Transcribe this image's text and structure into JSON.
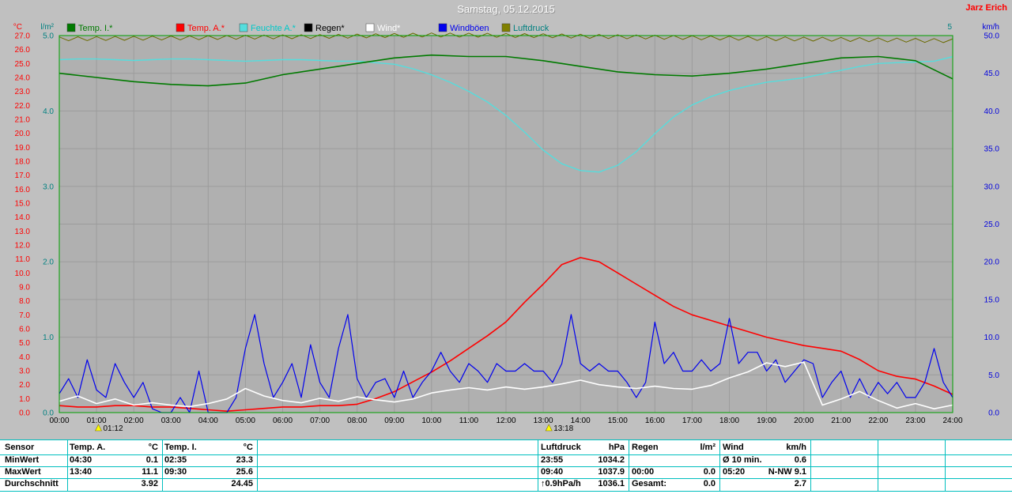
{
  "header": {
    "title": "Samstag, 05.12.2015",
    "station": "Jarz Erich"
  },
  "colors": {
    "window_bg": "#c0c0c0",
    "plot_bg": "#b0b0b0",
    "grid": "#9c9c9c",
    "border": "#00a000",
    "table_line": "#00bfbf",
    "title_color": "#ffffff",
    "station_color": "#ff0000"
  },
  "axes": {
    "left_temp": {
      "unit": "°C",
      "color": "#ff0000",
      "ticks": [
        "27.0",
        "26.0",
        "25.0",
        "24.0",
        "23.0",
        "22.0",
        "21.0",
        "20.0",
        "19.0",
        "18.0",
        "17.0",
        "16.0",
        "15.0",
        "14.0",
        "13.0",
        "12.0",
        "11.0",
        "10.0",
        "9.0",
        "8.0",
        "7.0",
        "6.0",
        "5.0",
        "4.0",
        "3.0",
        "2.0",
        "1.0",
        "0.0"
      ]
    },
    "left_rain": {
      "unit": "l/m²",
      "color": "#008080",
      "ticks": [
        "5.0",
        "4.0",
        "3.0",
        "2.0",
        "1.0",
        "0.0"
      ]
    },
    "right_scale_label": "5",
    "right_wind": {
      "unit": "km/h",
      "color": "#0000dd",
      "ticks": [
        "50.0",
        "45.0",
        "40.0",
        "35.0",
        "30.0",
        "25.0",
        "20.0",
        "15.0",
        "10.0",
        "5.0",
        "0.0"
      ]
    },
    "x_ticks": [
      "00:00",
      "01:00",
      "02:00",
      "03:00",
      "04:00",
      "05:00",
      "06:00",
      "07:00",
      "08:00",
      "09:00",
      "10:00",
      "11:00",
      "12:00",
      "13:00",
      "14:00",
      "15:00",
      "16:00",
      "17:00",
      "18:00",
      "19:00",
      "20:00",
      "21:00",
      "22:00",
      "23:00",
      "24:00"
    ]
  },
  "legend": [
    {
      "label": "Temp. I.*",
      "swatch": "#007a00",
      "text_color": "#007a00"
    },
    {
      "label": "Temp. A.*",
      "swatch": "#ff0000",
      "text_color": "#ff0000"
    },
    {
      "label": "Feuchte A.*",
      "swatch": "#55dddd",
      "text_color": "#00c8c8"
    },
    {
      "label": "Regen*",
      "swatch": "#000000",
      "text_color": "#000000"
    },
    {
      "label": "Wind*",
      "swatch": "#ffffff",
      "text_color": "#ffffff"
    },
    {
      "label": "Windböen",
      "swatch": "#0000ee",
      "text_color": "#0000ee"
    },
    {
      "label": "Luftdruck",
      "swatch": "#808000",
      "text_color": "#008080"
    }
  ],
  "markers": [
    {
      "label": "01:12",
      "hour": 1.2
    },
    {
      "label": "13:18",
      "hour": 13.3
    }
  ],
  "chart_data": {
    "type": "line",
    "title": "Samstag, 05.12.2015",
    "x_unit": "hour_of_day",
    "x_range": [
      0,
      24
    ],
    "axes_ranges": {
      "temp": [
        0,
        27
      ],
      "rain": [
        0,
        5
      ],
      "kmh": [
        0,
        50
      ],
      "hum": [
        50,
        100
      ]
    },
    "series": [
      {
        "name": "Temp. I.",
        "unit": "°C",
        "color": "#007a00",
        "axis": "temp",
        "interval_h": 1,
        "values": [
          24.3,
          24.0,
          23.7,
          23.5,
          23.4,
          23.6,
          24.2,
          24.6,
          25.0,
          25.4,
          25.6,
          25.5,
          25.5,
          25.2,
          24.8,
          24.4,
          24.2,
          24.1,
          24.3,
          24.6,
          25.0,
          25.4,
          25.5,
          25.2,
          23.9
        ]
      },
      {
        "name": "Temp. A.",
        "unit": "°C",
        "color": "#ff0000",
        "axis": "temp",
        "interval_h": 0.5,
        "values": [
          0.5,
          0.4,
          0.4,
          0.5,
          0.5,
          0.4,
          0.4,
          0.3,
          0.2,
          0.1,
          0.2,
          0.3,
          0.4,
          0.4,
          0.5,
          0.5,
          0.6,
          1.0,
          1.5,
          2.2,
          2.9,
          3.7,
          4.6,
          5.5,
          6.5,
          7.9,
          9.2,
          10.6,
          11.1,
          10.8,
          10.0,
          9.2,
          8.4,
          7.6,
          7.0,
          6.6,
          6.2,
          5.8,
          5.4,
          5.1,
          4.8,
          4.6,
          4.4,
          3.8,
          3.0,
          2.6,
          2.4,
          1.9,
          1.3
        ]
      },
      {
        "name": "Feuchte A.",
        "unit": "%",
        "color": "#55dddd",
        "axis": "hum",
        "interval_h": 0.5,
        "values": [
          96.8,
          96.9,
          96.9,
          96.8,
          96.7,
          96.8,
          96.9,
          96.9,
          96.8,
          96.7,
          96.6,
          96.7,
          96.8,
          96.8,
          96.7,
          96.6,
          96.6,
          96.4,
          96.2,
          95.6,
          94.8,
          93.8,
          92.6,
          91.2,
          89.4,
          87.2,
          84.8,
          83.0,
          82.1,
          81.9,
          82.8,
          84.6,
          87.0,
          89.2,
          90.8,
          91.9,
          92.7,
          93.3,
          93.8,
          94.1,
          94.4,
          94.9,
          95.4,
          95.9,
          96.3,
          96.4,
          96.5,
          96.6,
          97.2
        ]
      },
      {
        "name": "Regen",
        "unit": "l/m²",
        "color": "#000000",
        "axis": "rain",
        "interval_h": 1,
        "values": [
          0,
          0,
          0,
          0,
          0,
          0,
          0,
          0,
          0,
          0,
          0,
          0,
          0,
          0,
          0,
          0,
          0,
          0,
          0,
          0,
          0,
          0,
          0,
          0,
          0
        ]
      },
      {
        "name": "Wind",
        "unit": "km/h",
        "color": "#ffffff",
        "axis": "kmh",
        "interval_h": 0.5,
        "values": [
          1.5,
          2.2,
          1.2,
          1.8,
          1.0,
          1.3,
          1.0,
          0.8,
          1.2,
          1.8,
          3.2,
          2.2,
          1.6,
          1.3,
          1.9,
          1.5,
          2.1,
          1.7,
          1.4,
          1.8,
          2.6,
          3.0,
          3.3,
          3.0,
          3.4,
          3.1,
          3.4,
          3.8,
          4.3,
          3.7,
          3.4,
          3.2,
          3.5,
          3.2,
          3.1,
          3.6,
          4.6,
          5.4,
          6.6,
          6.1,
          6.7,
          1.0,
          1.8,
          2.8,
          1.6,
          0.6,
          1.2,
          0.5,
          1.0
        ]
      },
      {
        "name": "Windböen",
        "unit": "km/h",
        "color": "#0000ee",
        "axis": "kmh",
        "interval_h": 0.25,
        "values": [
          2.5,
          4.5,
          2.0,
          7.0,
          3.0,
          2.0,
          6.5,
          4.0,
          2.0,
          4.0,
          0.5,
          0.0,
          0.0,
          2.0,
          0.0,
          5.5,
          0.0,
          0.0,
          0.0,
          2.0,
          8.5,
          13.0,
          6.5,
          2.0,
          4.0,
          6.5,
          2.0,
          9.0,
          4.0,
          2.0,
          8.5,
          13.0,
          4.5,
          2.0,
          4.0,
          4.5,
          2.0,
          5.5,
          2.0,
          4.0,
          5.5,
          8.0,
          5.5,
          4.0,
          6.5,
          5.5,
          4.0,
          6.5,
          5.5,
          5.5,
          6.5,
          5.5,
          5.5,
          4.0,
          6.5,
          13.0,
          6.5,
          5.5,
          6.5,
          5.5,
          5.5,
          4.0,
          2.0,
          4.0,
          12.0,
          6.5,
          8.0,
          5.5,
          5.5,
          7.0,
          5.5,
          6.5,
          12.5,
          6.5,
          8.0,
          8.0,
          5.5,
          7.0,
          4.0,
          5.5,
          7.0,
          6.5,
          2.0,
          4.0,
          5.5,
          2.0,
          4.5,
          2.0,
          4.0,
          2.5,
          4.0,
          2.0,
          2.0,
          4.0,
          8.5,
          4.0,
          2.0
        ]
      },
      {
        "name": "Luftdruck",
        "unit": "hPa",
        "color": "#6b6b00",
        "axis": "press",
        "interval_h": 1,
        "style": "zigzag",
        "values": [
          1035.4,
          1035.6,
          1035.8,
          1036.0,
          1036.2,
          1036.5,
          1036.7,
          1036.9,
          1037.2,
          1037.6,
          1037.9,
          1037.8,
          1037.6,
          1037.4,
          1037.1,
          1036.8,
          1036.5,
          1036.2,
          1035.9,
          1035.6,
          1035.3,
          1035.1,
          1034.8,
          1034.5,
          1034.2
        ]
      }
    ]
  },
  "stats_table": {
    "row_labels": [
      "Sensor",
      "MinWert",
      "MaxWert",
      "Durchschnitt"
    ],
    "columns": [
      {
        "header_left": "Temp. A.",
        "header_right": "°C",
        "rows": [
          [
            "04:30",
            "0.1"
          ],
          [
            "13:40",
            "11.1"
          ],
          [
            "",
            "3.92"
          ]
        ]
      },
      {
        "header_left": "Temp. I.",
        "header_right": "°C",
        "rows": [
          [
            "02:35",
            "23.3"
          ],
          [
            "09:30",
            "25.6"
          ],
          [
            "",
            "24.45"
          ]
        ]
      },
      {
        "header_left": "Luftdruck",
        "header_right": "hPa",
        "rows": [
          [
            "23:55",
            "1034.2"
          ],
          [
            "09:40",
            "1037.9"
          ],
          [
            "↑0.9hPa/h",
            "1036.1"
          ]
        ]
      },
      {
        "header_left": "Regen",
        "header_right": "l/m²",
        "rows": [
          [
            "",
            ""
          ],
          [
            "00:00",
            "0.0"
          ],
          [
            "Gesamt:",
            "0.0"
          ]
        ]
      },
      {
        "header_left": "Wind",
        "header_right": "km/h",
        "rows": [
          [
            "Ø 10 min.",
            "0.6"
          ],
          [
            "05:20",
            "N-NW 9.1"
          ],
          [
            "",
            "2.7"
          ]
        ]
      }
    ]
  }
}
